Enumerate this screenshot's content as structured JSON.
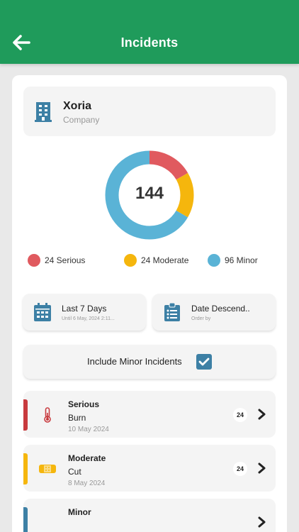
{
  "header": {
    "title": "Incidents",
    "back_icon": "arrow-left-icon",
    "color": "#1f9b5b"
  },
  "company": {
    "name": "Xoria",
    "label": "Company",
    "icon": "building-icon"
  },
  "summary": {
    "total": "144",
    "legend": [
      {
        "value": 24,
        "label": "24 Serious",
        "color": "#e05a5f"
      },
      {
        "value": 24,
        "label": "24 Moderate",
        "color": "#f5b60d"
      },
      {
        "value": 96,
        "label": "96 Minor",
        "color": "#5ab3d6"
      }
    ]
  },
  "filters": {
    "date": {
      "title": "Last 7 Days",
      "subtitle": "Until 6 May, 2024 2:11...",
      "icon": "calendar-icon"
    },
    "order": {
      "title": "Date Descend..",
      "subtitle": "Order by",
      "icon": "clipboard-list-icon"
    }
  },
  "toggle": {
    "label": "Include Minor Incidents",
    "checked": true,
    "color": "#3d80a5"
  },
  "incidents": [
    {
      "severity": "Serious",
      "type": "Burn",
      "date": "10 May 2024",
      "count": "24",
      "color": "#c83a3e",
      "icon": "thermometer-icon"
    },
    {
      "severity": "Moderate",
      "type": "Cut",
      "date": "8 May 2024",
      "count": "24",
      "color": "#f5b60d",
      "icon": "bandage-icon"
    },
    {
      "severity": "Minor",
      "type": "",
      "date": "",
      "count": "",
      "color": "#3d80a5",
      "icon": ""
    }
  ]
}
